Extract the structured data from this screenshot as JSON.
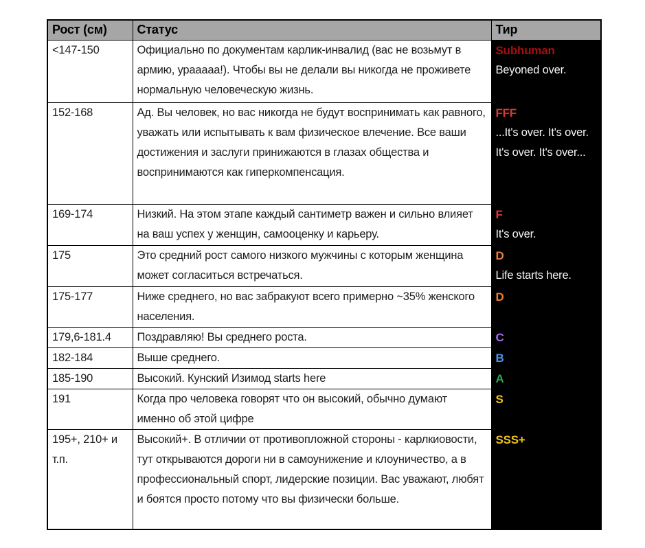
{
  "table": {
    "headers": [
      {
        "label": "Рост (см)"
      },
      {
        "label": "Статус"
      },
      {
        "label": "Тир"
      }
    ],
    "rows": [
      {
        "height": "<147-150",
        "status": "Официально по документам карлик-инвалид (вас не возьмут в армию, урааааа!). Чтобы вы не делали вы никогда не проживете нормальную человеческую жизнь.",
        "tier_grade": "Subhuman",
        "tier_color": "#A60F0F",
        "tier_note": "Beyoned over."
      },
      {
        "height": "152-168",
        "status": "Ад. Вы человек, но вас никогда не будут воспринимать как равного, уважать или испытывать к вам физическое влечение. Все ваши достижения и заслуги принижаются в глазах общества и воспринимаются как гиперкомпенсация.",
        "tier_grade": "FFF",
        "tier_color": "#DA3832",
        "tier_note": "...It's over. It's over. It's over. It's over..."
      },
      {
        "height": "169-174",
        "status": "Низкий. На этом этапе каждый сантиметр важен и сильно влияет на ваш успех у женщин, самооценку и карьеру.",
        "tier_grade": "F",
        "tier_color": "#DA3832",
        "tier_note": "It's over."
      },
      {
        "height": "175",
        "status": "Это средний рост самого низкого мужчины с которым женщина может согласиться встречаться.",
        "tier_grade": "D",
        "tier_color": "#ED7D31",
        "tier_note": "Life starts here."
      },
      {
        "height": "175-177",
        "status": "Ниже среднего, но вас забракуют всего примерно ~35% женского населения.",
        "tier_grade": "D",
        "tier_color": "#ED7D31",
        "tier_note": ""
      },
      {
        "height": "179,6-181.4",
        "status": "Поздравляю! Вы среднего роста.",
        "tier_grade": "C",
        "tier_color": "#A569F0",
        "tier_note": ""
      },
      {
        "height": "182-184",
        "status": "Выше среднего.",
        "tier_grade": "B",
        "tier_color": "#4D94EB",
        "tier_note": ""
      },
      {
        "height": "185-190",
        "status": "Высокий. Кунский Изимод starts here",
        "tier_grade": "A",
        "tier_color": "#2FA84F",
        "tier_note": ""
      },
      {
        "height": "191",
        "status": "Когда про человека говорят что он высокий, обычно думают именно об этой цифре",
        "tier_grade": "S",
        "tier_color": "#EFC117",
        "tier_note": ""
      },
      {
        "height": "195+, 210+ и т.п.",
        "status": "Высокий+. В отличии от противопложной стороны - карлкиовости, тут открываются дороги ни в самоунижение и клоуничество, а в профессиональный спорт, лидерские позиции. Вас уважают, любят и боятся просто потому что вы физически больше.",
        "tier_grade": "SSS+",
        "tier_color": "#EFC117",
        "tier_note": ""
      }
    ],
    "colors": {
      "header_bg": "#A6A6A6",
      "header_text": "#000000",
      "tier_bg": "#000000",
      "tier_note_text": "#F5F5F5",
      "body_text": "#1E1E1E",
      "border": "#000000"
    }
  }
}
